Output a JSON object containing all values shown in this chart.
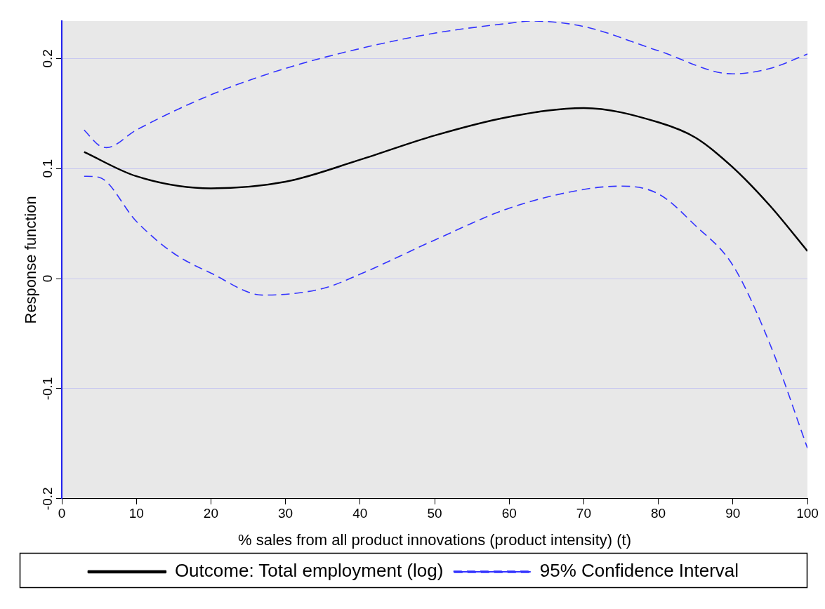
{
  "chart_data": {
    "type": "line",
    "xlabel": "% sales from all product innovations (product intensity) (t)",
    "ylabel": "Response function",
    "xlim": [
      0,
      100
    ],
    "xticks": [
      0,
      10,
      20,
      30,
      40,
      50,
      60,
      70,
      80,
      90,
      100
    ],
    "ylim": [
      -0.2,
      0.234
    ],
    "yticks": [
      -0.2,
      -0.1,
      0,
      0.1,
      0.2
    ],
    "grid": "y",
    "legend": "bottom",
    "marker": "none",
    "series": [
      {
        "name": "Outcome: Total employment (log)",
        "color": "#000000",
        "line_style": "solid",
        "x": [
          3,
          10,
          20,
          30,
          40,
          50,
          60,
          70,
          80,
          85,
          90,
          95,
          100
        ],
        "values": [
          0.115,
          0.093,
          0.082,
          0.088,
          0.108,
          0.13,
          0.147,
          0.155,
          0.142,
          0.128,
          0.101,
          0.066,
          0.025
        ]
      },
      {
        "name": "95% Confidence Interval",
        "color": "#3333ff",
        "line_style": "dashed",
        "x": [
          3,
          5,
          6,
          10,
          20,
          30,
          40,
          50,
          60,
          63,
          70,
          80,
          90,
          95,
          100
        ],
        "values": [
          0.135,
          0.121,
          0.119,
          0.135,
          0.167,
          0.191,
          0.209,
          0.223,
          0.232,
          0.234,
          0.229,
          0.207,
          0.186,
          0.191,
          0.204
        ]
      },
      {
        "color": "#3333ff",
        "line_style": "dashed",
        "x": [
          3,
          5,
          10,
          15,
          20,
          27,
          35,
          40,
          50,
          60,
          70,
          75,
          80,
          85,
          90,
          95,
          100
        ],
        "values": [
          0.093,
          0.092,
          0.052,
          0.023,
          0.005,
          -0.015,
          -0.009,
          0.004,
          0.035,
          0.064,
          0.081,
          0.084,
          0.077,
          0.048,
          0.012,
          -0.06,
          -0.154
        ]
      }
    ]
  }
}
